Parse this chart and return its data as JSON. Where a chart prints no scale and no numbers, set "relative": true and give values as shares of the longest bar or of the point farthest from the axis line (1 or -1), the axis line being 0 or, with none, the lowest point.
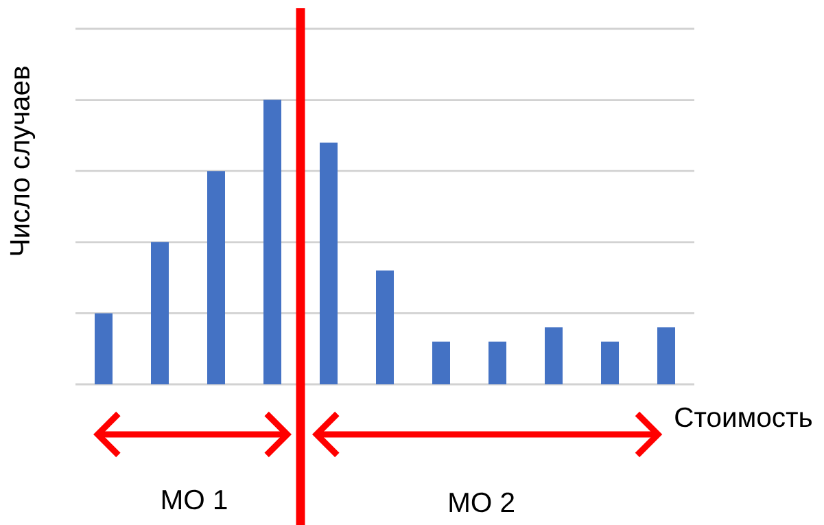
{
  "chart_data": {
    "type": "bar",
    "relative": true,
    "xlabel": "Стоимость",
    "ylabel": "Число случаев",
    "categories": [
      null,
      null,
      null,
      null,
      null,
      null,
      null,
      null,
      null,
      null,
      null
    ],
    "values": [
      0.25,
      0.5,
      0.75,
      1,
      0.85,
      0.4,
      0.15,
      0.15,
      0.2,
      0.15,
      0.2
    ],
    "color": "#4472c4",
    "grid": "y",
    "annotations": [
      "МО 1",
      "МО 2"
    ]
  }
}
